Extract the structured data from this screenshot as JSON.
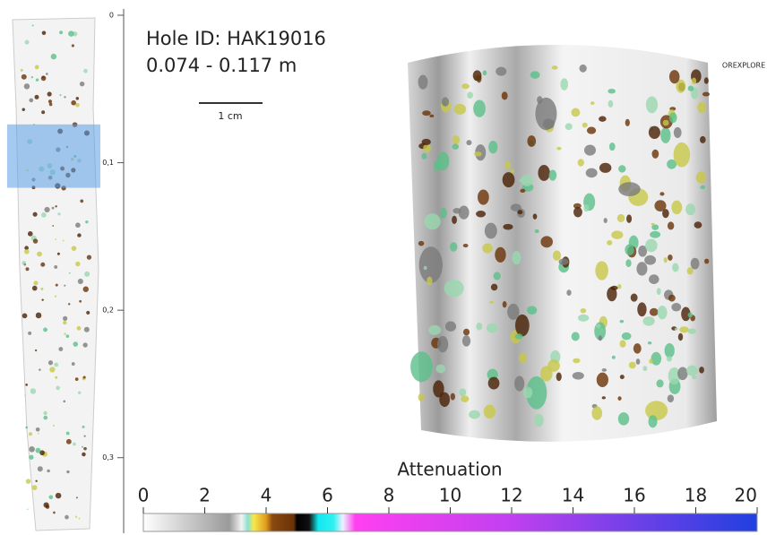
{
  "header": {
    "hole_id": "Hole ID: HAK19016",
    "interval": "0.074 - 0.117 m"
  },
  "scale_bar": "1 cm",
  "logo": "OREXPLORE",
  "depth_axis": {
    "lim": [
      0,
      0.35
    ],
    "highlight": [
      0.074,
      0.117
    ],
    "ticks": [
      {
        "value": 0,
        "label": "0"
      },
      {
        "value": 0.1,
        "label": "0,1"
      },
      {
        "value": 0.2,
        "label": "0,2"
      },
      {
        "value": 0.3,
        "label": "0,3"
      }
    ]
  },
  "colorbar": {
    "title": "Attenuation",
    "lim": [
      0,
      20
    ],
    "ticks": [
      0,
      2,
      4,
      6,
      8,
      10,
      12,
      14,
      16,
      18,
      20
    ]
  }
}
